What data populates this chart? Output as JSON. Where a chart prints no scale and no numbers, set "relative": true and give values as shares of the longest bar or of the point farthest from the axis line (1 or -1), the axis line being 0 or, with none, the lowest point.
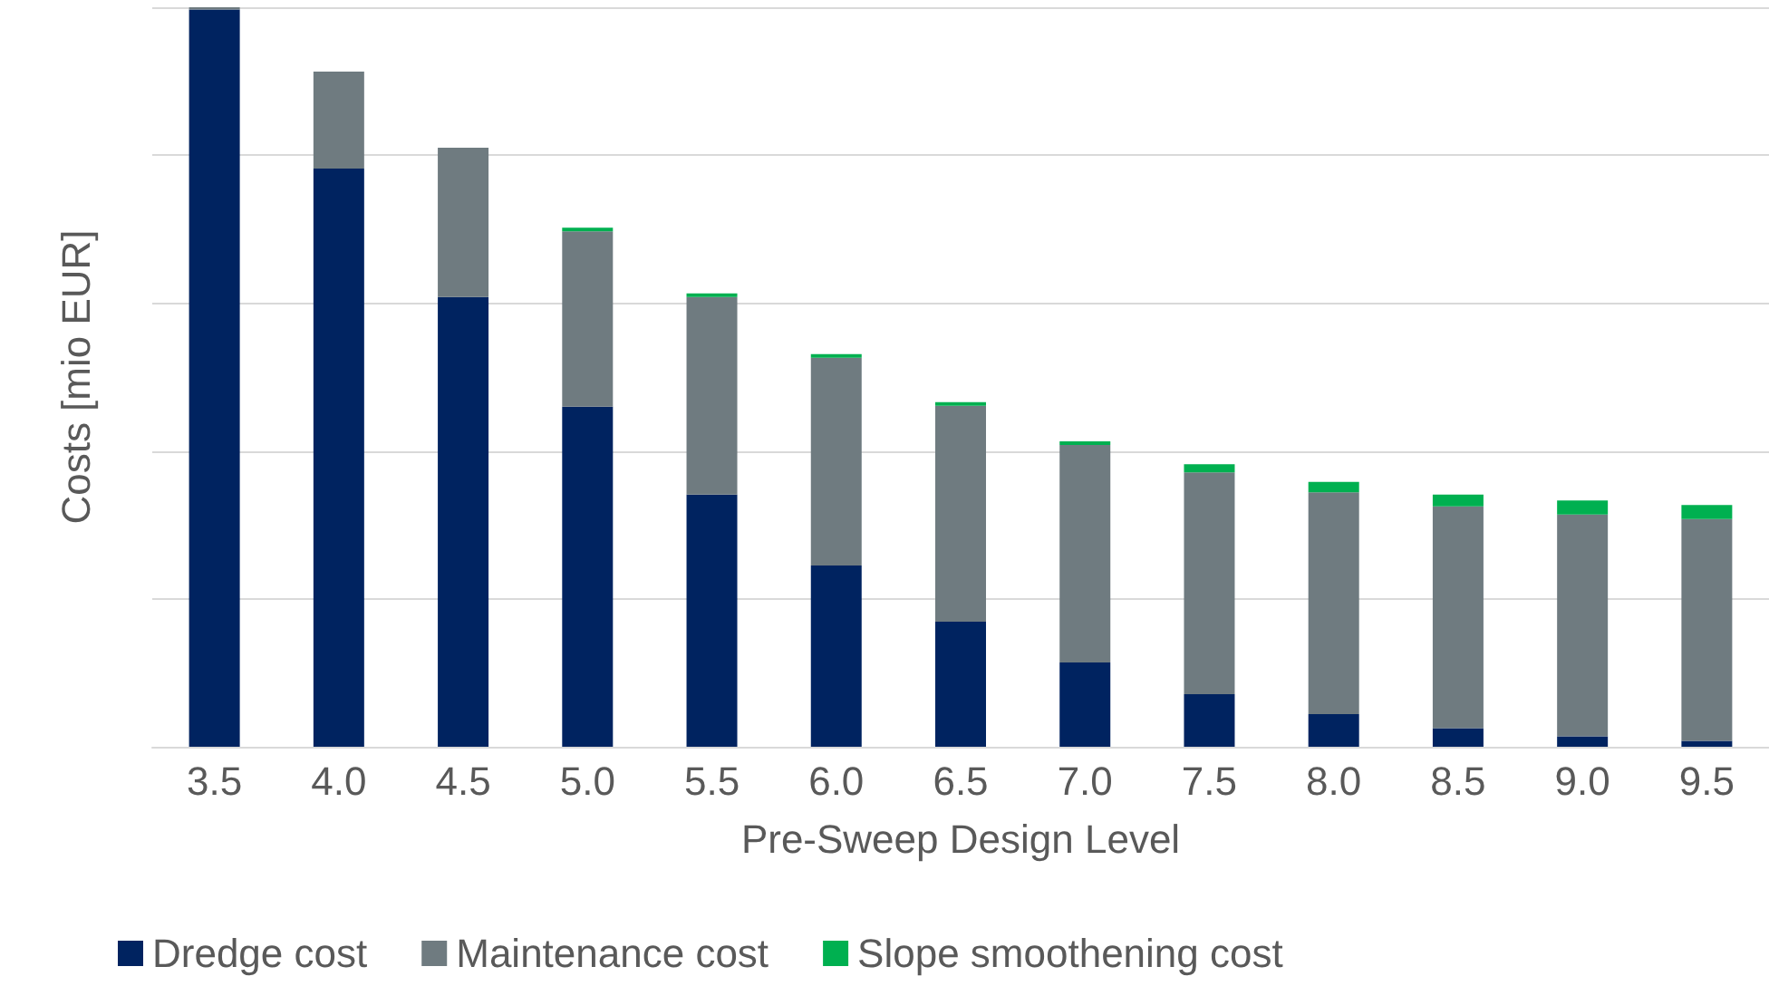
{
  "chart_data": {
    "type": "bar",
    "stacked": true,
    "relative": true,
    "grid": "y",
    "legend": "bottom left",
    "xlabel": "Pre-Sweep Design Level",
    "ylabel": "Costs [mio EUR]",
    "categories": [
      "3.5",
      "4.0",
      "4.5",
      "5.0",
      "5.5",
      "6.0",
      "6.5",
      "7.0",
      "7.5",
      "8.0",
      "8.5",
      "9.0",
      "9.5"
    ],
    "series": [
      {
        "name": "Dredge cost",
        "color": "#002360",
        "values": [
          0.997,
          0.782,
          0.608,
          0.46,
          0.341,
          0.245,
          0.169,
          0.114,
          0.071,
          0.044,
          0.025,
          0.014,
          0.008
        ]
      },
      {
        "name": "Maintenance cost",
        "color": "#6f7b80",
        "values": [
          0.003,
          0.131,
          0.202,
          0.237,
          0.267,
          0.281,
          0.292,
          0.294,
          0.3,
          0.3,
          0.3,
          0.3,
          0.3
        ]
      },
      {
        "name": "Slope smoothening cost",
        "color": "#00b050",
        "values": [
          0,
          0,
          0,
          0.005,
          0.005,
          0.005,
          0.005,
          0.005,
          0.011,
          0.014,
          0.016,
          0.019,
          0.019
        ]
      }
    ]
  }
}
